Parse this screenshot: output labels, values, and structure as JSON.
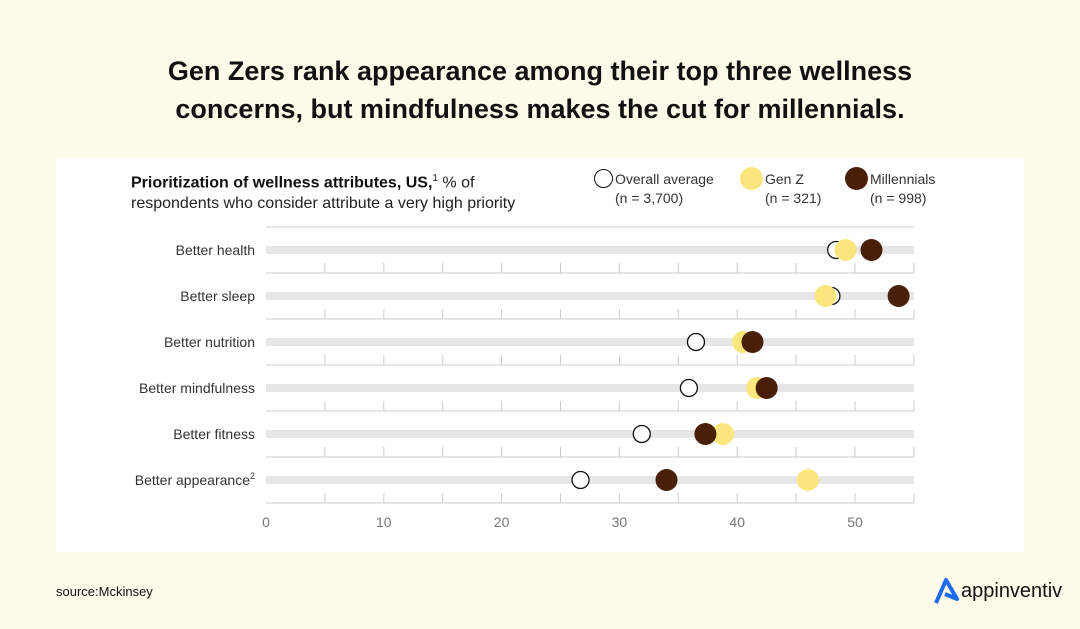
{
  "title_line1": "Gen Zers rank appearance among their top three wellness",
  "title_line2": "concerns, but mindfulness makes the cut for millennials.",
  "source": "source:Mckinsey",
  "logo_text": "appinventiv",
  "chart_data": {
    "type": "scatter",
    "subtitle_bold": "Prioritization of wellness attributes, US,",
    "subtitle_sup": "1",
    "subtitle_rest1": " % of",
    "subtitle_rest2": "respondents who consider attribute a very high priority",
    "xlim": [
      0,
      55
    ],
    "xticks": [
      0,
      10,
      20,
      30,
      40,
      50
    ],
    "categories": [
      "Better health",
      "Better sleep",
      "Better nutrition",
      "Better mindfulness",
      "Better fitness",
      "Better appearance"
    ],
    "category_sup": [
      "",
      "",
      "",
      "",
      "",
      "2"
    ],
    "series": [
      {
        "name": "Overall average",
        "n": "(n = 3,700)",
        "color": "#ffffff",
        "stroke": "#111111",
        "values": [
          48.4,
          48.0,
          36.5,
          35.9,
          31.9,
          26.7
        ]
      },
      {
        "name": "Gen Z",
        "n": "(n = 321)",
        "color": "#fbe67e",
        "values": [
          49.2,
          47.5,
          40.5,
          41.7,
          38.8,
          46.0
        ]
      },
      {
        "name": "Millennials",
        "n": "(n = 998)",
        "color": "#4a1f08",
        "values": [
          51.4,
          53.7,
          41.3,
          42.5,
          37.3,
          34.0
        ]
      }
    ],
    "track_color": "#e6e6e6",
    "legend": "top-right"
  }
}
